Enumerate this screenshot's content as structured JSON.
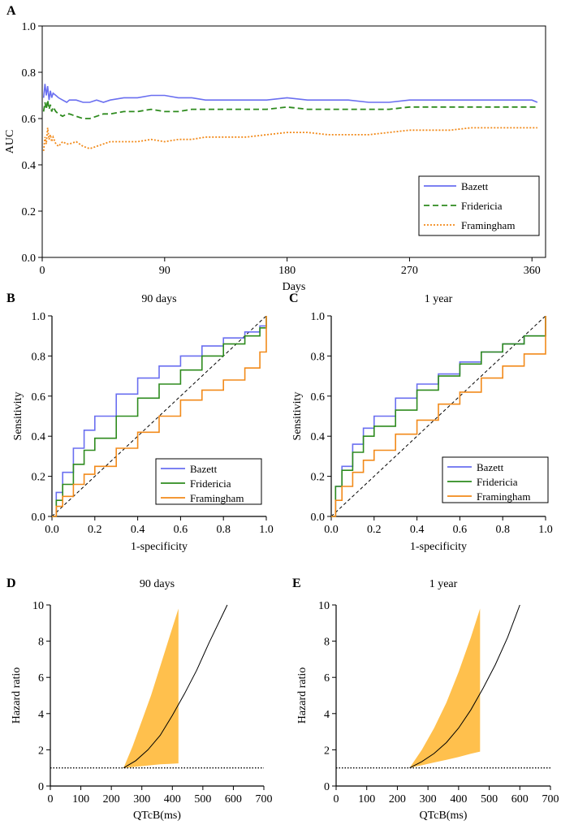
{
  "colors": {
    "bazett": "#6a6ff0",
    "fridericia": "#2e8b1e",
    "framingham": "#f28a1a",
    "band": "#ffc04d",
    "axis": "#000000"
  },
  "chart_data": [
    {
      "panel": "A",
      "type": "line",
      "title": "",
      "xlabel": "Days",
      "ylabel": "AUC",
      "xlim": [
        0,
        370
      ],
      "ylim": [
        0,
        1.0
      ],
      "xticks": [
        0,
        90,
        180,
        270,
        360
      ],
      "yticks": [
        0.0,
        0.2,
        0.4,
        0.6,
        0.8,
        1.0
      ],
      "ytick_labels": [
        "0.0",
        "0.2",
        "0.4",
        "0.6",
        "0.8",
        "1.0"
      ],
      "legend": [
        "Bazett",
        "Fridericia",
        "Framingham"
      ],
      "series": [
        {
          "name": "Bazett",
          "style": "solid",
          "x": [
            1,
            2,
            3,
            4,
            5,
            6,
            7,
            8,
            10,
            12,
            15,
            18,
            20,
            25,
            30,
            35,
            40,
            45,
            50,
            60,
            70,
            80,
            90,
            100,
            110,
            120,
            135,
            150,
            165,
            180,
            195,
            210,
            225,
            240,
            255,
            270,
            285,
            300,
            315,
            330,
            345,
            360,
            364
          ],
          "y": [
            0.69,
            0.75,
            0.7,
            0.74,
            0.68,
            0.72,
            0.69,
            0.71,
            0.7,
            0.69,
            0.68,
            0.67,
            0.68,
            0.68,
            0.67,
            0.67,
            0.68,
            0.67,
            0.68,
            0.69,
            0.69,
            0.7,
            0.7,
            0.69,
            0.69,
            0.68,
            0.68,
            0.68,
            0.68,
            0.69,
            0.68,
            0.68,
            0.68,
            0.67,
            0.67,
            0.68,
            0.68,
            0.68,
            0.68,
            0.68,
            0.68,
            0.68,
            0.67
          ]
        },
        {
          "name": "Fridericia",
          "style": "dashed",
          "x": [
            1,
            2,
            3,
            4,
            5,
            6,
            7,
            8,
            10,
            12,
            15,
            18,
            20,
            25,
            30,
            35,
            40,
            45,
            50,
            60,
            70,
            80,
            90,
            100,
            110,
            120,
            135,
            150,
            165,
            180,
            195,
            210,
            225,
            240,
            255,
            270,
            285,
            300,
            315,
            330,
            345,
            360,
            364
          ],
          "y": [
            0.63,
            0.67,
            0.64,
            0.68,
            0.64,
            0.66,
            0.63,
            0.65,
            0.63,
            0.62,
            0.61,
            0.62,
            0.62,
            0.61,
            0.6,
            0.6,
            0.61,
            0.62,
            0.62,
            0.63,
            0.63,
            0.64,
            0.63,
            0.63,
            0.64,
            0.64,
            0.64,
            0.64,
            0.64,
            0.65,
            0.64,
            0.64,
            0.64,
            0.64,
            0.64,
            0.65,
            0.65,
            0.65,
            0.65,
            0.65,
            0.65,
            0.65,
            0.65
          ]
        },
        {
          "name": "Framingham",
          "style": "dotted",
          "x": [
            1,
            2,
            3,
            4,
            5,
            6,
            7,
            8,
            10,
            12,
            15,
            18,
            20,
            25,
            30,
            35,
            40,
            45,
            50,
            60,
            70,
            80,
            90,
            100,
            110,
            120,
            135,
            150,
            165,
            180,
            195,
            210,
            225,
            240,
            255,
            270,
            285,
            300,
            315,
            330,
            345,
            360,
            364
          ],
          "y": [
            0.46,
            0.52,
            0.49,
            0.56,
            0.51,
            0.53,
            0.5,
            0.52,
            0.49,
            0.48,
            0.5,
            0.49,
            0.49,
            0.5,
            0.48,
            0.47,
            0.48,
            0.49,
            0.5,
            0.5,
            0.5,
            0.51,
            0.5,
            0.51,
            0.51,
            0.52,
            0.52,
            0.52,
            0.53,
            0.54,
            0.54,
            0.53,
            0.53,
            0.53,
            0.54,
            0.55,
            0.55,
            0.55,
            0.56,
            0.56,
            0.56,
            0.56,
            0.56
          ]
        }
      ]
    },
    {
      "panel": "B",
      "type": "line",
      "title": "90 days",
      "xlabel": "1-specificity",
      "ylabel": "Sensitivity",
      "xlim": [
        0,
        1
      ],
      "ylim": [
        0,
        1
      ],
      "xticks": [
        0.0,
        0.2,
        0.4,
        0.6,
        0.8,
        1.0
      ],
      "yticks": [
        0.0,
        0.2,
        0.4,
        0.6,
        0.8,
        1.0
      ],
      "xtick_labels": [
        "0.0",
        "0.2",
        "0.4",
        "0.6",
        "0.8",
        "1.0"
      ],
      "ytick_labels": [
        "0.0",
        "0.2",
        "0.4",
        "0.6",
        "0.8",
        "1.0"
      ],
      "legend": [
        "Bazett",
        "Fridericia",
        "Framingham"
      ],
      "reference_line": [
        [
          0,
          0
        ],
        [
          1,
          1
        ]
      ],
      "series": [
        {
          "name": "Bazett",
          "x": [
            0,
            0.02,
            0.05,
            0.1,
            0.15,
            0.2,
            0.3,
            0.4,
            0.5,
            0.6,
            0.7,
            0.8,
            0.9,
            0.97,
            1.0
          ],
          "y": [
            0,
            0.12,
            0.22,
            0.34,
            0.43,
            0.5,
            0.61,
            0.69,
            0.75,
            0.8,
            0.85,
            0.89,
            0.92,
            0.95,
            1.0
          ]
        },
        {
          "name": "Fridericia",
          "x": [
            0,
            0.02,
            0.05,
            0.1,
            0.15,
            0.2,
            0.3,
            0.4,
            0.5,
            0.6,
            0.7,
            0.8,
            0.9,
            0.97,
            1.0
          ],
          "y": [
            0,
            0.08,
            0.16,
            0.26,
            0.33,
            0.39,
            0.5,
            0.59,
            0.66,
            0.73,
            0.8,
            0.86,
            0.9,
            0.94,
            1.0
          ]
        },
        {
          "name": "Framingham",
          "x": [
            0,
            0.02,
            0.05,
            0.1,
            0.15,
            0.2,
            0.3,
            0.4,
            0.5,
            0.6,
            0.7,
            0.8,
            0.9,
            0.97,
            1.0
          ],
          "y": [
            0,
            0.05,
            0.1,
            0.16,
            0.21,
            0.25,
            0.34,
            0.42,
            0.5,
            0.58,
            0.63,
            0.68,
            0.74,
            0.82,
            1.0
          ]
        }
      ]
    },
    {
      "panel": "C",
      "type": "line",
      "title": "1 year",
      "xlabel": "1-specificity",
      "ylabel": "Sensitivity",
      "xlim": [
        0,
        1
      ],
      "ylim": [
        0,
        1
      ],
      "xticks": [
        0.0,
        0.2,
        0.4,
        0.6,
        0.8,
        1.0
      ],
      "yticks": [
        0.0,
        0.2,
        0.4,
        0.6,
        0.8,
        1.0
      ],
      "xtick_labels": [
        "0.0",
        "0.2",
        "0.4",
        "0.6",
        "0.8",
        "1.0"
      ],
      "ytick_labels": [
        "0.0",
        "0.2",
        "0.4",
        "0.6",
        "0.8",
        "1.0"
      ],
      "legend": [
        "Bazett",
        "Fridericia",
        "Framingham"
      ],
      "reference_line": [
        [
          0,
          0
        ],
        [
          1,
          1
        ]
      ],
      "series": [
        {
          "name": "Bazett",
          "x": [
            0,
            0.02,
            0.05,
            0.1,
            0.15,
            0.2,
            0.3,
            0.4,
            0.5,
            0.6,
            0.7,
            0.8,
            0.9,
            1.0
          ],
          "y": [
            0,
            0.15,
            0.25,
            0.36,
            0.44,
            0.5,
            0.59,
            0.66,
            0.71,
            0.77,
            0.82,
            0.86,
            0.9,
            1.0
          ]
        },
        {
          "name": "Fridericia",
          "x": [
            0,
            0.02,
            0.05,
            0.1,
            0.15,
            0.2,
            0.3,
            0.4,
            0.5,
            0.6,
            0.7,
            0.8,
            0.9,
            1.0
          ],
          "y": [
            0,
            0.15,
            0.23,
            0.32,
            0.4,
            0.45,
            0.53,
            0.63,
            0.7,
            0.76,
            0.82,
            0.86,
            0.9,
            1.0
          ]
        },
        {
          "name": "Framingham",
          "x": [
            0,
            0.02,
            0.05,
            0.1,
            0.15,
            0.2,
            0.3,
            0.4,
            0.5,
            0.6,
            0.7,
            0.8,
            0.9,
            1.0
          ],
          "y": [
            0,
            0.08,
            0.15,
            0.22,
            0.28,
            0.33,
            0.41,
            0.48,
            0.56,
            0.62,
            0.69,
            0.75,
            0.81,
            1.0
          ]
        }
      ]
    },
    {
      "panel": "D",
      "type": "area",
      "title": "90 days",
      "xlabel": "QTcB(ms)",
      "ylabel": "Hazard ratio",
      "xlim": [
        0,
        700
      ],
      "ylim": [
        0,
        10
      ],
      "xticks": [
        0,
        100,
        200,
        300,
        400,
        500,
        600,
        700
      ],
      "yticks": [
        0,
        2,
        4,
        6,
        8,
        10
      ],
      "reference_y": 1,
      "curve": {
        "x": [
          240,
          280,
          320,
          360,
          400,
          440,
          480,
          520,
          560,
          580
        ],
        "y": [
          1.0,
          1.4,
          2.0,
          2.8,
          3.9,
          5.1,
          6.4,
          7.9,
          9.3,
          10.0
        ]
      },
      "band": {
        "x": [
          240,
          270,
          300,
          330,
          360,
          390,
          420
        ],
        "upper": [
          1.0,
          2.2,
          3.6,
          5.0,
          6.6,
          8.2,
          9.8
        ],
        "lower": [
          1.0,
          1.05,
          1.1,
          1.15,
          1.2,
          1.22,
          1.25
        ]
      }
    },
    {
      "panel": "E",
      "type": "area",
      "title": "1 year",
      "xlabel": "QTcB(ms)",
      "ylabel": "Hazard ratio",
      "xlim": [
        0,
        700
      ],
      "ylim": [
        0,
        10
      ],
      "xticks": [
        0,
        100,
        200,
        300,
        400,
        500,
        600,
        700
      ],
      "yticks": [
        0,
        2,
        4,
        6,
        8,
        10
      ],
      "reference_y": 1,
      "curve": {
        "x": [
          240,
          280,
          320,
          360,
          400,
          440,
          480,
          520,
          560,
          600
        ],
        "y": [
          1.0,
          1.35,
          1.8,
          2.4,
          3.2,
          4.2,
          5.4,
          6.7,
          8.2,
          10.0
        ]
      },
      "band": {
        "x": [
          240,
          280,
          320,
          360,
          400,
          440,
          470
        ],
        "upper": [
          1.0,
          2.0,
          3.2,
          4.6,
          6.3,
          8.2,
          9.8
        ],
        "lower": [
          1.0,
          1.15,
          1.3,
          1.45,
          1.6,
          1.78,
          1.9
        ]
      }
    }
  ]
}
